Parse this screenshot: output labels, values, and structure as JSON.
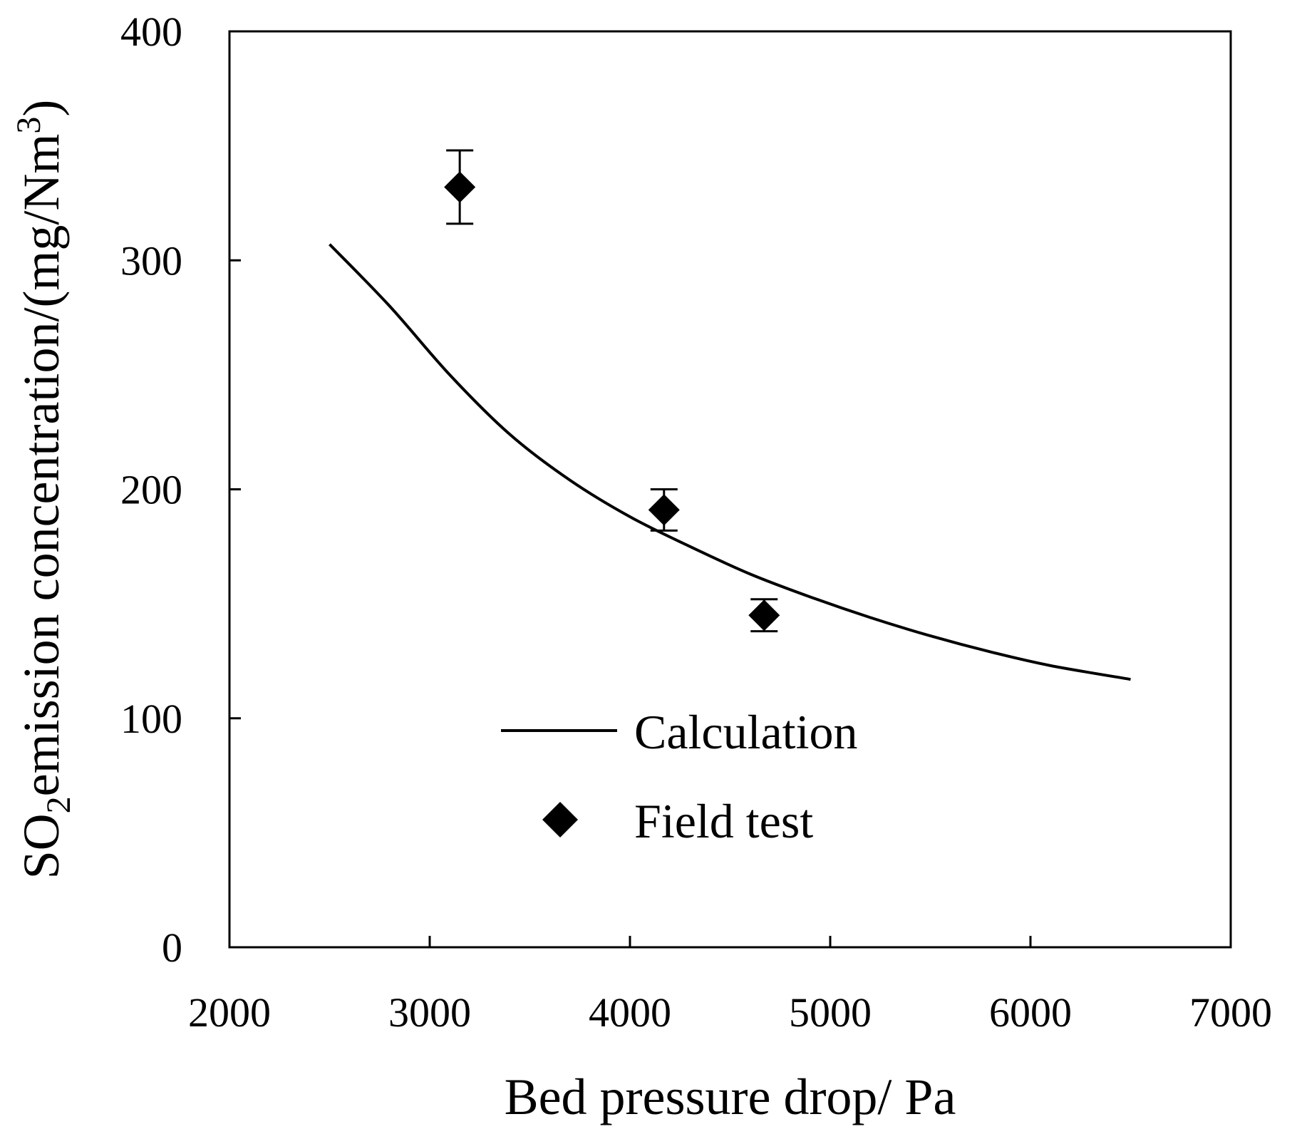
{
  "chart_data": {
    "type": "line",
    "title": "",
    "xlabel": "Bed pressure drop/ Pa",
    "ylabel": {
      "prefix": "SO",
      "subscript": "2",
      "main": "emission concentration/(mg/Nm",
      "superscript": "3",
      "suffix": ")"
    },
    "xlim": [
      2000,
      7000
    ],
    "ylim": [
      0,
      400
    ],
    "x_ticks": [
      2000,
      3000,
      4000,
      5000,
      6000,
      7000
    ],
    "x_tick_labels": [
      "2000",
      "3000",
      "4000",
      "5000",
      "6000",
      "7000"
    ],
    "y_ticks": [
      0,
      100,
      200,
      300,
      400
    ],
    "y_tick_labels": [
      "0",
      "100",
      "200",
      "300",
      "400"
    ],
    "grid": false,
    "legend_position": "lower-center",
    "series": [
      {
        "name": "Calculation",
        "kind": "line",
        "color": "#000000",
        "x": [
          2500,
          2800,
          3100,
          3400,
          3700,
          4000,
          4300,
          4600,
          4900,
          5200,
          5500,
          5800,
          6100,
          6500
        ],
        "y": [
          307,
          280,
          250,
          224,
          204,
          188,
          175,
          163,
          153,
          144,
          136,
          129,
          123,
          117
        ]
      },
      {
        "name": "Field test",
        "kind": "scatter",
        "marker": "diamond",
        "color": "#000000",
        "x": [
          3150,
          4170,
          4670
        ],
        "y": [
          332,
          191,
          145
        ],
        "error": [
          16,
          9,
          7
        ]
      }
    ]
  }
}
